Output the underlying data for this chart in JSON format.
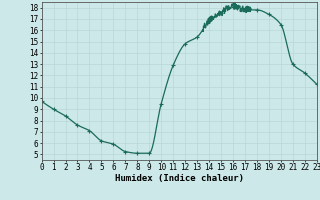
{
  "title": "",
  "xlabel": "Humidex (Indice chaleur)",
  "ylabel": "",
  "bg_color": "#cce8e8",
  "grid_color": "#b8d8d8",
  "line_color": "#1a6b5a",
  "marker_color": "#1a6b5a",
  "x_values": [
    0,
    1,
    2,
    3,
    4,
    5,
    6,
    7,
    8,
    9,
    10,
    11,
    12,
    13,
    14,
    15,
    16,
    17,
    18,
    19,
    20,
    21,
    22,
    23
  ],
  "y_values": [
    9.7,
    9.0,
    8.4,
    7.6,
    7.1,
    6.2,
    5.9,
    5.25,
    5.1,
    5.1,
    9.5,
    12.9,
    14.8,
    15.4,
    16.8,
    17.5,
    18.1,
    17.8,
    17.8,
    17.4,
    16.5,
    13.0,
    12.2,
    11.2
  ],
  "xlim": [
    0,
    23
  ],
  "ylim": [
    4.5,
    18.5
  ],
  "yticks": [
    5,
    6,
    7,
    8,
    9,
    10,
    11,
    12,
    13,
    14,
    15,
    16,
    17,
    18
  ],
  "xticks": [
    0,
    1,
    2,
    3,
    4,
    5,
    6,
    7,
    8,
    9,
    10,
    11,
    12,
    13,
    14,
    15,
    16,
    17,
    18,
    19,
    20,
    21,
    22,
    23
  ],
  "tick_fontsize": 5.5,
  "label_fontsize": 6.5,
  "linewidth": 0.9,
  "markersize": 2.5
}
